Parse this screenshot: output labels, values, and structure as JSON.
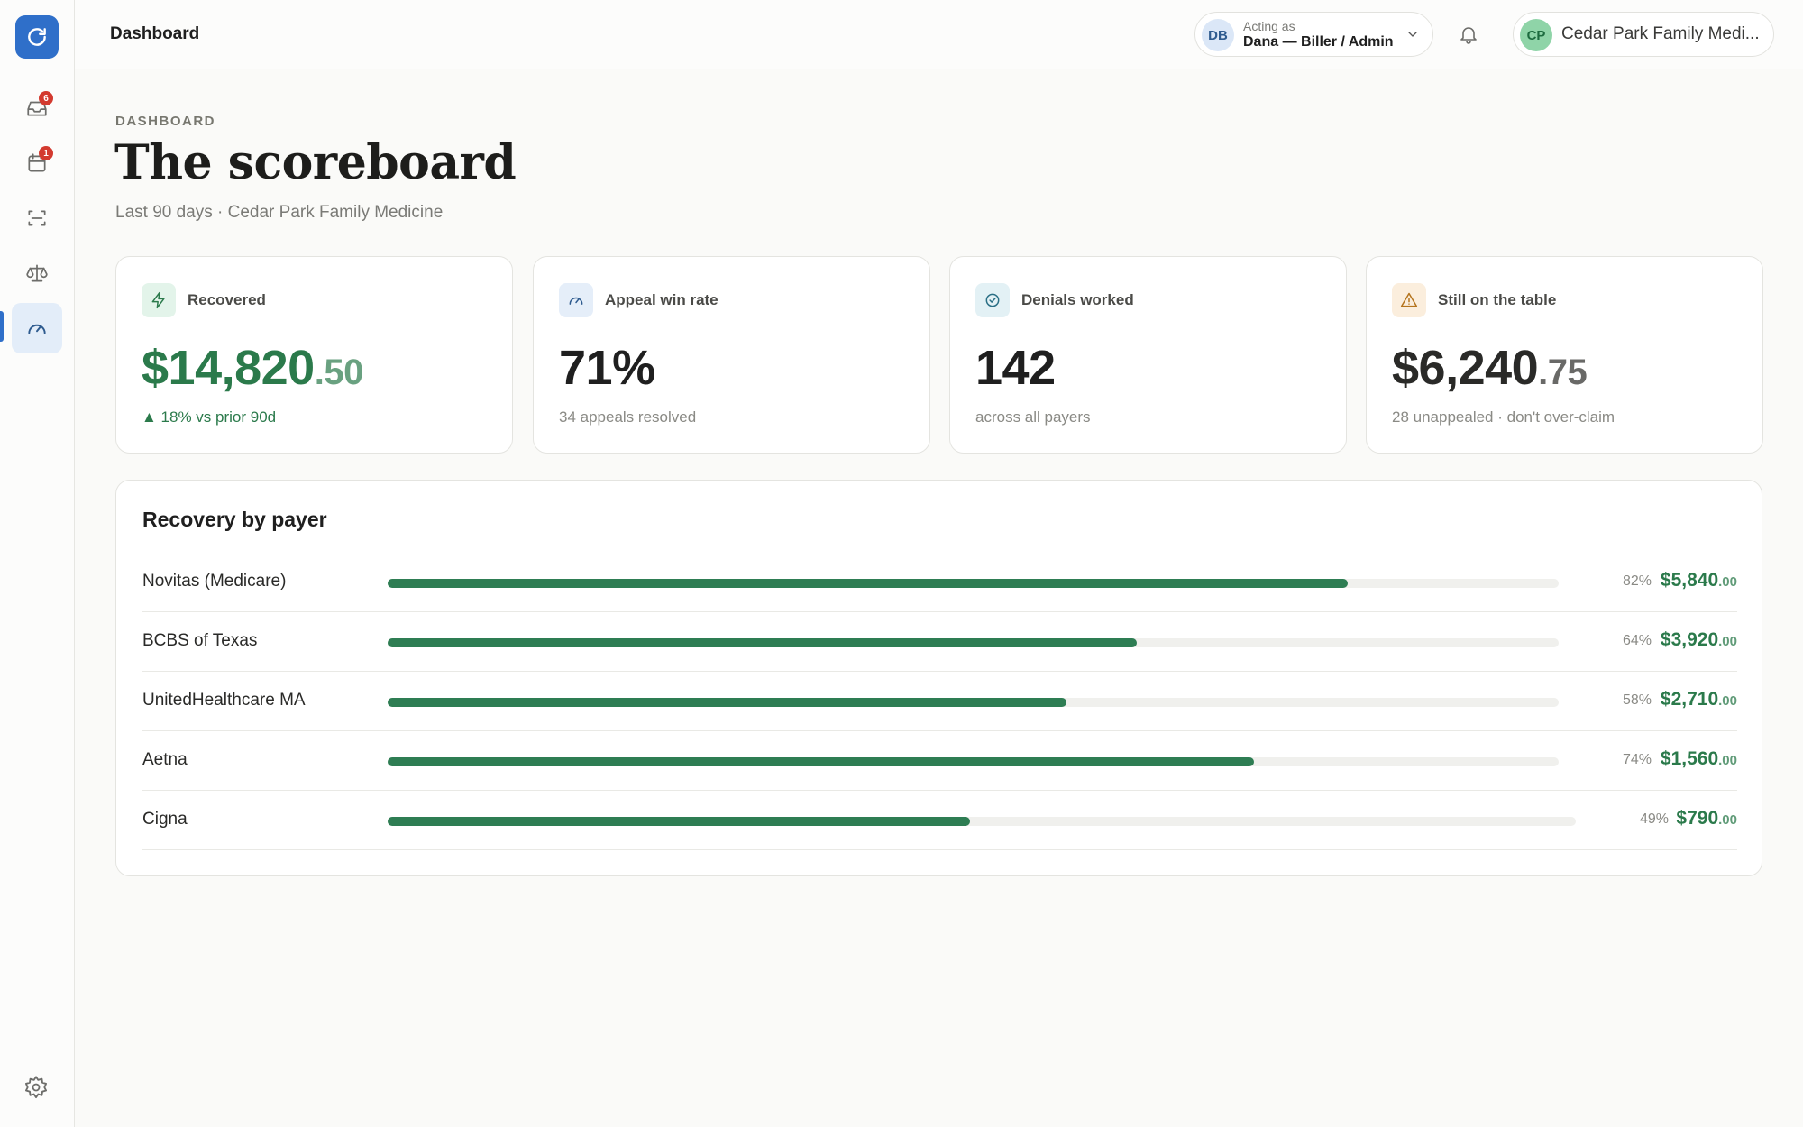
{
  "app": {
    "logo_icon": "refresh-icon",
    "brand_color": "#2f6fc9"
  },
  "sidebar": {
    "items": [
      {
        "name": "inbox",
        "icon": "inbox-icon",
        "badge": "6"
      },
      {
        "name": "calendar",
        "icon": "calendar-icon",
        "badge": "1"
      },
      {
        "name": "scan",
        "icon": "scan-icon",
        "badge": null
      },
      {
        "name": "appeals",
        "icon": "scale-icon",
        "badge": null
      },
      {
        "name": "dashboard",
        "icon": "gauge-icon",
        "badge": null,
        "active": true
      }
    ],
    "settings_icon": "settings-icon"
  },
  "topbar": {
    "title": "Dashboard",
    "acting": {
      "initials": "DB",
      "label": "Acting as",
      "name": "Dana — Biller / Admin"
    },
    "org": {
      "initials": "CP",
      "name": "Cedar Park Family Medi..."
    }
  },
  "header": {
    "eyebrow": "DASHBOARD",
    "title": "The scoreboard",
    "subtitle": "Last 90 days · Cedar Park Family Medicine"
  },
  "kpis": {
    "recovered": {
      "label": "Recovered",
      "value": "$14,820",
      "cents": ".50",
      "sub": "▲ 18% vs prior 90d",
      "icon": "lightning-icon",
      "color": "#2b7a4b"
    },
    "win_rate": {
      "label": "Appeal win rate",
      "value": "71%",
      "sub": "34 appeals resolved",
      "icon": "gauge-icon"
    },
    "denials": {
      "label": "Denials worked",
      "value": "142",
      "sub": "across all payers",
      "icon": "check-circle-icon"
    },
    "on_table": {
      "label": "Still on the table",
      "value": "$6,240",
      "cents": ".75",
      "sub": "28 unappealed · don't over-claim",
      "icon": "warning-icon"
    }
  },
  "recovery": {
    "title": "Recovery by payer",
    "rows": [
      {
        "name": "Novitas (Medicare)",
        "pct": "82%",
        "pct_value": 0.82,
        "amount": "$5,840",
        "cents": ".00"
      },
      {
        "name": "BCBS of Texas",
        "pct": "64%",
        "pct_value": 0.64,
        "amount": "$3,920",
        "cents": ".00"
      },
      {
        "name": "UnitedHealthcare MA",
        "pct": "58%",
        "pct_value": 0.58,
        "amount": "$2,710",
        "cents": ".00"
      },
      {
        "name": "Aetna",
        "pct": "74%",
        "pct_value": 0.74,
        "amount": "$1,560",
        "cents": ".00"
      },
      {
        "name": "Cigna",
        "pct": "49%",
        "pct_value": 0.49,
        "amount": "$790",
        "cents": ".00"
      }
    ]
  }
}
